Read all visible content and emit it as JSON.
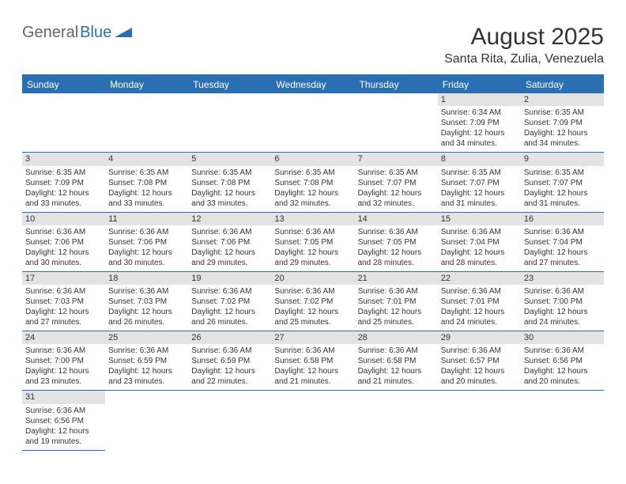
{
  "logo": {
    "part1": "General",
    "part2": "Blue"
  },
  "title": "August 2025",
  "location": "Santa Rita, Zulia, Venezuela",
  "day_names": [
    "Sunday",
    "Monday",
    "Tuesday",
    "Wednesday",
    "Thursday",
    "Friday",
    "Saturday"
  ],
  "colors": {
    "brand": "#2b6fb3",
    "daynum_bg": "#e3e3e3",
    "text": "#333333",
    "bg": "#ffffff"
  },
  "weeks": [
    [
      null,
      null,
      null,
      null,
      null,
      {
        "n": "1",
        "sr": "6:34 AM",
        "ss": "7:09 PM",
        "dl": "12 hours and 34 minutes."
      },
      {
        "n": "2",
        "sr": "6:35 AM",
        "ss": "7:09 PM",
        "dl": "12 hours and 34 minutes."
      }
    ],
    [
      {
        "n": "3",
        "sr": "6:35 AM",
        "ss": "7:09 PM",
        "dl": "12 hours and 33 minutes."
      },
      {
        "n": "4",
        "sr": "6:35 AM",
        "ss": "7:08 PM",
        "dl": "12 hours and 33 minutes."
      },
      {
        "n": "5",
        "sr": "6:35 AM",
        "ss": "7:08 PM",
        "dl": "12 hours and 33 minutes."
      },
      {
        "n": "6",
        "sr": "6:35 AM",
        "ss": "7:08 PM",
        "dl": "12 hours and 32 minutes."
      },
      {
        "n": "7",
        "sr": "6:35 AM",
        "ss": "7:07 PM",
        "dl": "12 hours and 32 minutes."
      },
      {
        "n": "8",
        "sr": "6:35 AM",
        "ss": "7:07 PM",
        "dl": "12 hours and 31 minutes."
      },
      {
        "n": "9",
        "sr": "6:35 AM",
        "ss": "7:07 PM",
        "dl": "12 hours and 31 minutes."
      }
    ],
    [
      {
        "n": "10",
        "sr": "6:36 AM",
        "ss": "7:06 PM",
        "dl": "12 hours and 30 minutes."
      },
      {
        "n": "11",
        "sr": "6:36 AM",
        "ss": "7:06 PM",
        "dl": "12 hours and 30 minutes."
      },
      {
        "n": "12",
        "sr": "6:36 AM",
        "ss": "7:06 PM",
        "dl": "12 hours and 29 minutes."
      },
      {
        "n": "13",
        "sr": "6:36 AM",
        "ss": "7:05 PM",
        "dl": "12 hours and 29 minutes."
      },
      {
        "n": "14",
        "sr": "6:36 AM",
        "ss": "7:05 PM",
        "dl": "12 hours and 28 minutes."
      },
      {
        "n": "15",
        "sr": "6:36 AM",
        "ss": "7:04 PM",
        "dl": "12 hours and 28 minutes."
      },
      {
        "n": "16",
        "sr": "6:36 AM",
        "ss": "7:04 PM",
        "dl": "12 hours and 27 minutes."
      }
    ],
    [
      {
        "n": "17",
        "sr": "6:36 AM",
        "ss": "7:03 PM",
        "dl": "12 hours and 27 minutes."
      },
      {
        "n": "18",
        "sr": "6:36 AM",
        "ss": "7:03 PM",
        "dl": "12 hours and 26 minutes."
      },
      {
        "n": "19",
        "sr": "6:36 AM",
        "ss": "7:02 PM",
        "dl": "12 hours and 26 minutes."
      },
      {
        "n": "20",
        "sr": "6:36 AM",
        "ss": "7:02 PM",
        "dl": "12 hours and 25 minutes."
      },
      {
        "n": "21",
        "sr": "6:36 AM",
        "ss": "7:01 PM",
        "dl": "12 hours and 25 minutes."
      },
      {
        "n": "22",
        "sr": "6:36 AM",
        "ss": "7:01 PM",
        "dl": "12 hours and 24 minutes."
      },
      {
        "n": "23",
        "sr": "6:36 AM",
        "ss": "7:00 PM",
        "dl": "12 hours and 24 minutes."
      }
    ],
    [
      {
        "n": "24",
        "sr": "6:36 AM",
        "ss": "7:00 PM",
        "dl": "12 hours and 23 minutes."
      },
      {
        "n": "25",
        "sr": "6:36 AM",
        "ss": "6:59 PM",
        "dl": "12 hours and 23 minutes."
      },
      {
        "n": "26",
        "sr": "6:36 AM",
        "ss": "6:59 PM",
        "dl": "12 hours and 22 minutes."
      },
      {
        "n": "27",
        "sr": "6:36 AM",
        "ss": "6:58 PM",
        "dl": "12 hours and 21 minutes."
      },
      {
        "n": "28",
        "sr": "6:36 AM",
        "ss": "6:58 PM",
        "dl": "12 hours and 21 minutes."
      },
      {
        "n": "29",
        "sr": "6:36 AM",
        "ss": "6:57 PM",
        "dl": "12 hours and 20 minutes."
      },
      {
        "n": "30",
        "sr": "6:36 AM",
        "ss": "6:56 PM",
        "dl": "12 hours and 20 minutes."
      }
    ],
    [
      {
        "n": "31",
        "sr": "6:36 AM",
        "ss": "6:56 PM",
        "dl": "12 hours and 19 minutes."
      },
      null,
      null,
      null,
      null,
      null,
      null
    ]
  ],
  "labels": {
    "sunrise": "Sunrise:",
    "sunset": "Sunset:",
    "daylight": "Daylight:"
  }
}
